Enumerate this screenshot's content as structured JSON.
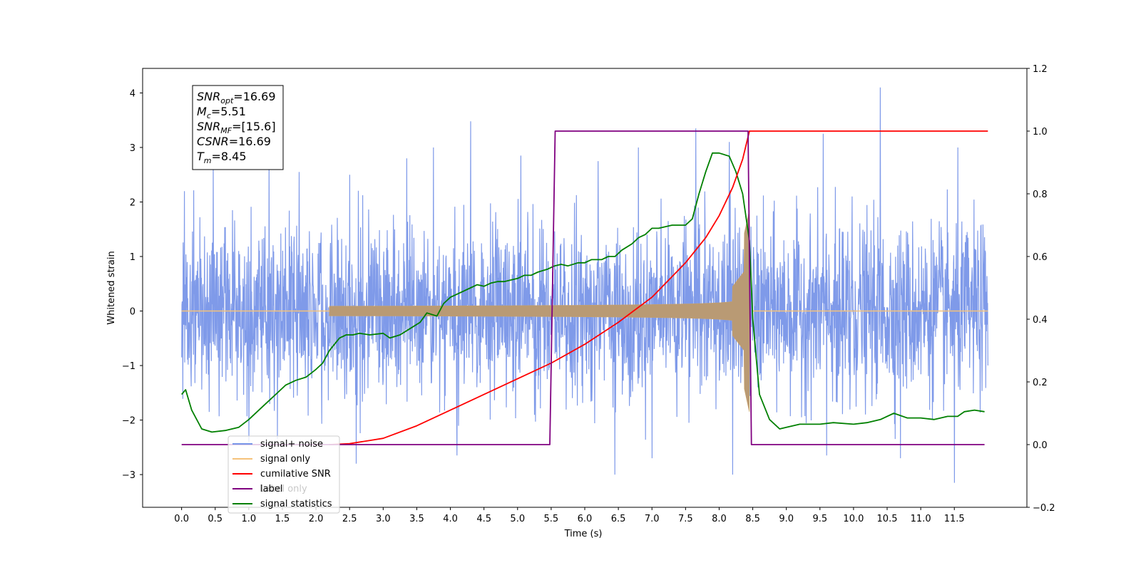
{
  "chart_data": {
    "type": "line",
    "xlabel": "Time (s)",
    "ylabel": "Whitened strain",
    "xlim": [
      -0.58,
      12.58
    ],
    "ylim": [
      -3.6,
      4.45
    ],
    "y2lim": [
      -0.2,
      1.2
    ],
    "x_ticks": [
      "0.0",
      "0.5",
      "1.0",
      "1.5",
      "2.0",
      "2.5",
      "3.0",
      "3.5",
      "4.0",
      "4.5",
      "5.0",
      "5.5",
      "6.0",
      "6.5",
      "7.0",
      "7.5",
      "8.0",
      "8.5",
      "9.0",
      "9.5",
      "10.0",
      "10.5",
      "11.0",
      "11.5"
    ],
    "x_tick_values": [
      0,
      0.5,
      1,
      1.5,
      2,
      2.5,
      3,
      3.5,
      4,
      4.5,
      5,
      5.5,
      6,
      6.5,
      7,
      7.5,
      8,
      8.5,
      9,
      9.5,
      10,
      10.5,
      11,
      11.5
    ],
    "y_ticks": [
      "−3",
      "−2",
      "−1",
      "0",
      "1",
      "2",
      "3",
      "4"
    ],
    "y_tick_values": [
      -3,
      -2,
      -1,
      0,
      1,
      2,
      3,
      4
    ],
    "y2_ticks": [
      "−0.2",
      "0.0",
      "0.2",
      "0.4",
      "0.6",
      "0.8",
      "1.0",
      "1.2"
    ],
    "y2_tick_values": [
      -0.2,
      0,
      0.2,
      0.4,
      0.6,
      0.8,
      1.0,
      1.2
    ],
    "info_box": [
      {
        "sym": "SNR",
        "sub": "opt",
        "val": "=16.69"
      },
      {
        "sym": "M",
        "sub": "c",
        "val": "=5.51"
      },
      {
        "sym": "SNR",
        "sub": "MF",
        "val": "=[15.6]"
      },
      {
        "sym": "CSNR",
        "sub": "",
        "val": "=16.69"
      },
      {
        "sym": "T",
        "sub": "m",
        "val": "=8.45"
      }
    ],
    "legend": [
      {
        "label": "signal+ noise",
        "color": "#7895e8"
      },
      {
        "label": "signal only",
        "color": "#f5c27a"
      },
      {
        "label": "cumilative SNR",
        "color": "#ff0000"
      },
      {
        "label": "label",
        "color": "#800080"
      },
      {
        "label": "signal statistics",
        "color": "#008000"
      }
    ],
    "legend_behind_text": "Label only",
    "legend_placement": "lower-left",
    "series": [
      {
        "name": "signal+ noise",
        "axis": "left",
        "color": "#7895e8",
        "x_range": [
          0,
          12.0
        ],
        "noise_band": [
          -2.4,
          2.3
        ],
        "peaks": [
          [
            0.04,
            2.2
          ],
          [
            0.47,
            2.65
          ],
          [
            1.3,
            2.75
          ],
          [
            1.75,
            2.55
          ],
          [
            2.5,
            2.5
          ],
          [
            3.35,
            2.8
          ],
          [
            3.75,
            3.0
          ],
          [
            4.3,
            3.48
          ],
          [
            5.05,
            2.85
          ],
          [
            6.2,
            2.75
          ],
          [
            6.8,
            3.0
          ],
          [
            7.65,
            3.35
          ],
          [
            8.15,
            3.1
          ],
          [
            9.55,
            3.25
          ],
          [
            10.4,
            4.1
          ],
          [
            11.55,
            3.0
          ],
          [
            1.0,
            -2.4
          ],
          [
            2.6,
            -2.8
          ],
          [
            4.1,
            -2.65
          ],
          [
            6.45,
            -3.0
          ],
          [
            7.0,
            -2.7
          ],
          [
            8.2,
            -3.0
          ],
          [
            9.6,
            -2.65
          ],
          [
            10.7,
            -2.7
          ],
          [
            11.5,
            -3.15
          ]
        ]
      },
      {
        "name": "signal only",
        "axis": "left",
        "color": "#c29a6a",
        "chirp_start": 2.2,
        "chirp_end": 8.45,
        "amp_start": 0.02,
        "amp_end": 0.45,
        "tail_end": 12.0
      },
      {
        "name": "cumilative SNR",
        "axis": "right",
        "color": "#ff0000",
        "x": [
          2.2,
          2.5,
          3.0,
          3.5,
          4.0,
          4.5,
          5.0,
          5.5,
          6.0,
          6.5,
          7.0,
          7.5,
          7.8,
          8.0,
          8.2,
          8.35,
          8.45,
          12.0
        ],
        "y": [
          0.0,
          0.003,
          0.02,
          0.06,
          0.11,
          0.16,
          0.21,
          0.26,
          0.32,
          0.39,
          0.47,
          0.58,
          0.66,
          0.73,
          0.82,
          0.91,
          1.0,
          1.0
        ]
      },
      {
        "name": "label",
        "axis": "right",
        "color": "#800080",
        "x": [
          0.0,
          5.48,
          5.56,
          8.43,
          8.48,
          11.95
        ],
        "y": [
          0,
          0,
          1,
          1,
          0,
          0
        ]
      },
      {
        "name": "signal statistics",
        "axis": "right",
        "color": "#008000",
        "x": [
          0.0,
          0.06,
          0.15,
          0.3,
          0.45,
          0.65,
          0.85,
          1.0,
          1.2,
          1.4,
          1.55,
          1.7,
          1.85,
          2.0,
          2.1,
          2.2,
          2.35,
          2.45,
          2.55,
          2.65,
          2.8,
          3.0,
          3.1,
          3.25,
          3.4,
          3.55,
          3.65,
          3.8,
          3.9,
          4.0,
          4.1,
          4.2,
          4.3,
          4.4,
          4.5,
          4.6,
          4.7,
          4.8,
          5.0,
          5.1,
          5.2,
          5.3,
          5.45,
          5.55,
          5.65,
          5.75,
          5.9,
          6.0,
          6.1,
          6.25,
          6.35,
          6.45,
          6.55,
          6.7,
          6.8,
          6.9,
          7.0,
          7.1,
          7.3,
          7.5,
          7.6,
          7.7,
          7.8,
          7.9,
          8.0,
          8.15,
          8.25,
          8.35,
          8.45,
          8.5,
          8.6,
          8.75,
          8.9,
          9.0,
          9.2,
          9.5,
          9.7,
          10.0,
          10.2,
          10.4,
          10.6,
          10.8,
          11.0,
          11.2,
          11.4,
          11.55,
          11.65,
          11.8,
          11.95
        ],
        "y": [
          0.16,
          0.175,
          0.11,
          0.05,
          0.04,
          0.045,
          0.055,
          0.08,
          0.12,
          0.16,
          0.19,
          0.205,
          0.215,
          0.24,
          0.26,
          0.3,
          0.34,
          0.35,
          0.35,
          0.355,
          0.35,
          0.355,
          0.34,
          0.35,
          0.37,
          0.39,
          0.42,
          0.41,
          0.45,
          0.47,
          0.48,
          0.49,
          0.5,
          0.51,
          0.505,
          0.515,
          0.52,
          0.52,
          0.53,
          0.54,
          0.54,
          0.55,
          0.56,
          0.57,
          0.575,
          0.57,
          0.58,
          0.58,
          0.59,
          0.59,
          0.6,
          0.6,
          0.62,
          0.64,
          0.66,
          0.67,
          0.69,
          0.69,
          0.7,
          0.7,
          0.72,
          0.8,
          0.87,
          0.93,
          0.93,
          0.92,
          0.87,
          0.8,
          0.65,
          0.4,
          0.16,
          0.08,
          0.05,
          0.055,
          0.065,
          0.065,
          0.07,
          0.065,
          0.07,
          0.08,
          0.1,
          0.085,
          0.085,
          0.08,
          0.09,
          0.09,
          0.105,
          0.11,
          0.105
        ]
      }
    ]
  }
}
